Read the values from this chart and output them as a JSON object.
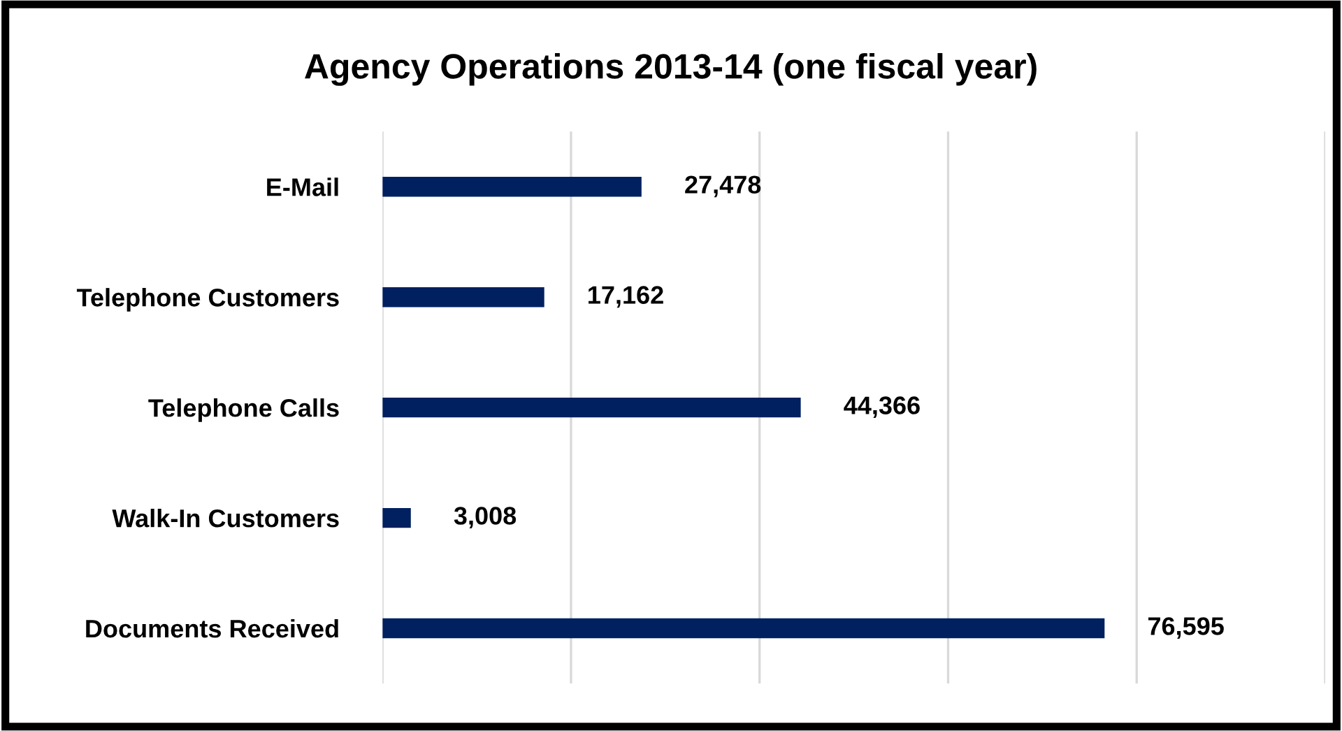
{
  "chart_data": {
    "type": "bar",
    "orientation": "horizontal",
    "title": "Agency Operations 2013-14 (one fiscal year)",
    "categories": [
      "E-Mail",
      "Telephone Customers",
      "Telephone Calls",
      "Walk-In Customers",
      "Documents Received"
    ],
    "values": [
      27478,
      17162,
      44366,
      3008,
      76595
    ],
    "color": "#002060",
    "value_labels": [
      "27,478",
      "17,162",
      "44,366",
      "3,008",
      "76,595"
    ],
    "tick_labels": "y",
    "grid": "x",
    "legend": false
  }
}
